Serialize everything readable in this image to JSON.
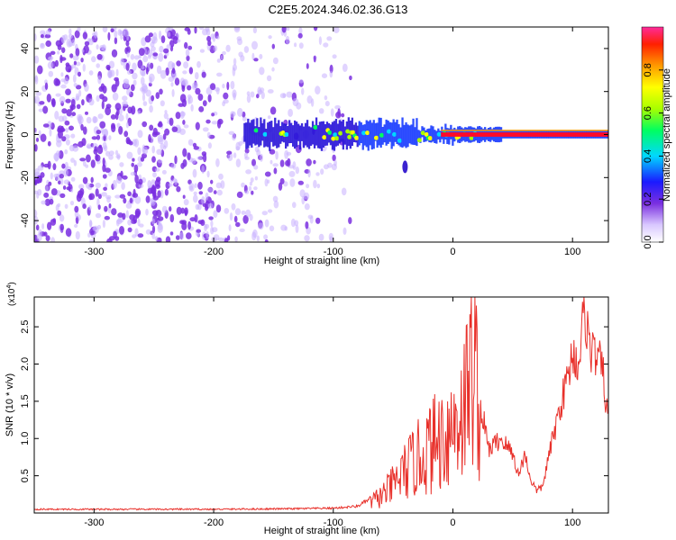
{
  "figure": {
    "title": "C2E5.2024.346.02.36.G13"
  },
  "colors": {
    "line": "#e8302a",
    "axis": "#000000",
    "scatter_noise": "#7a2fe0",
    "ridge_core": "#ff0a2a"
  },
  "chart_data": [
    {
      "type": "heatmap",
      "title": "",
      "xlabel": "Height of straight line (km)",
      "ylabel": "Frequency (Hz)",
      "xlim": [
        -350,
        130
      ],
      "ylim": [
        -50,
        50
      ],
      "x_ticks": [
        -300,
        -200,
        -100,
        0,
        100
      ],
      "y_ticks": [
        -40,
        -20,
        0,
        20,
        40
      ],
      "x_tick_labels": [
        "-300",
        "-200",
        "-100",
        "0",
        "100"
      ],
      "y_tick_labels": [
        "-40",
        "-20",
        "0",
        "20",
        "40"
      ],
      "colorbar": {
        "label": "Normalized spectral amplitude",
        "range": [
          0,
          1
        ],
        "ticks": [
          0.0,
          0.2,
          0.4,
          0.6,
          0.8
        ],
        "tick_labels": [
          "0.0",
          "0.2",
          "0.4",
          "0.6",
          "0.8"
        ]
      },
      "features": [
        {
          "name": "broadband noise",
          "x_range": [
            -350,
            -85
          ],
          "freq_range": [
            -50,
            50
          ],
          "amplitude": 0.15
        },
        {
          "name": "signal band",
          "x_range": [
            -175,
            130
          ],
          "center_freq": 0,
          "amplitude_start": 0.35,
          "amplitude_end": 1.0
        },
        {
          "name": "isolated blob",
          "x": -40,
          "freq": -15,
          "amplitude": 0.2
        }
      ]
    },
    {
      "type": "line",
      "title": "",
      "xlabel": "Height of straight line (km)",
      "ylabel": "SNR (10 * v/v)",
      "scale_label": "(x10",
      "scale_exponent": "4",
      "scale_suffix": ")",
      "xlim": [
        -350,
        130
      ],
      "ylim": [
        0,
        29000
      ],
      "x_ticks": [
        -300,
        -200,
        -100,
        0,
        100
      ],
      "y_ticks": [
        5000,
        10000,
        15000,
        20000,
        25000
      ],
      "x_tick_labels": [
        "-300",
        "-200",
        "-100",
        "0",
        "100"
      ],
      "y_tick_labels": [
        "0.5",
        "1.0",
        "1.5",
        "2.0",
        "2.5"
      ],
      "series": [
        {
          "name": "SNR",
          "x": [
            -350,
            -300,
            -250,
            -200,
            -150,
            -120,
            -100,
            -80,
            -70,
            -60,
            -50,
            -40,
            -30,
            -20,
            -10,
            0,
            10,
            18,
            20,
            25,
            30,
            40,
            50,
            55,
            60,
            65,
            70,
            75,
            80,
            85,
            90,
            95,
            100,
            105,
            110,
            115,
            120,
            125,
            130
          ],
          "y": [
            500,
            500,
            500,
            500,
            550,
            600,
            650,
            900,
            1800,
            3000,
            5000,
            7500,
            9500,
            11500,
            13500,
            15500,
            19500,
            29000,
            22000,
            13000,
            8500,
            10000,
            8000,
            5000,
            8000,
            4500,
            3000,
            3500,
            7500,
            11000,
            14500,
            17500,
            21500,
            20000,
            27500,
            22000,
            21000,
            19500,
            12000
          ]
        }
      ]
    }
  ]
}
